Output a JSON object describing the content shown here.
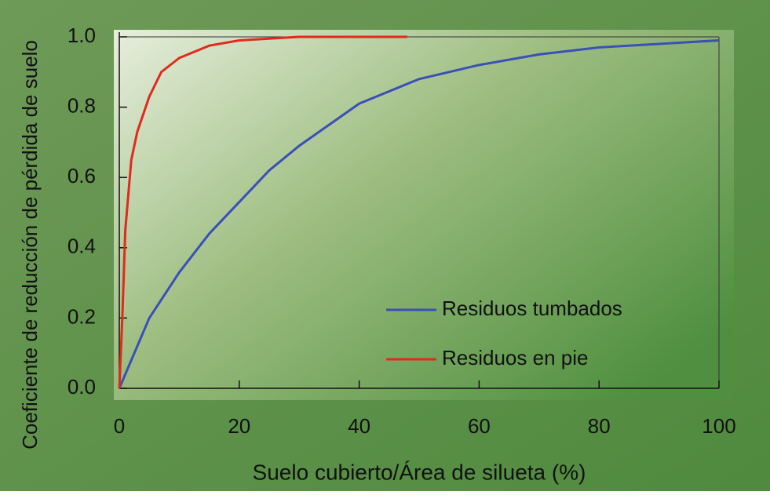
{
  "chart_data": {
    "type": "line",
    "xlabel": "Suelo cubierto/Área de silueta (%)",
    "ylabel": "Coeficiente de reducción de pérdida de suelo",
    "xlim": [
      0,
      100
    ],
    "xticks": [
      0,
      20,
      40,
      60,
      80,
      100
    ],
    "ylim": [
      0,
      1
    ],
    "yticks": [
      {
        "value": 0,
        "label": "0.0"
      },
      0.2,
      0.4,
      0.6,
      0.8,
      {
        "value": 1,
        "label": "1.0"
      }
    ],
    "legend": "lower right",
    "series": [
      {
        "name": "Residuos tumbados",
        "color": "#3a4fb8",
        "x": [
          0,
          5,
          10,
          15,
          20,
          25,
          30,
          35,
          40,
          50,
          60,
          70,
          80,
          90,
          100
        ],
        "values": [
          0,
          0.2,
          0.33,
          0.44,
          0.53,
          0.62,
          0.69,
          0.75,
          0.81,
          0.88,
          0.92,
          0.95,
          0.97,
          0.98,
          0.99
        ]
      },
      {
        "name": "Residuos en pie",
        "color": "#e02a1e",
        "x": [
          0,
          0.5,
          1,
          2,
          3,
          5,
          7,
          10,
          15,
          20,
          30,
          48
        ],
        "values": [
          0,
          0.2,
          0.45,
          0.65,
          0.73,
          0.83,
          0.9,
          0.94,
          0.975,
          0.99,
          1.0,
          1.0
        ]
      }
    ]
  }
}
